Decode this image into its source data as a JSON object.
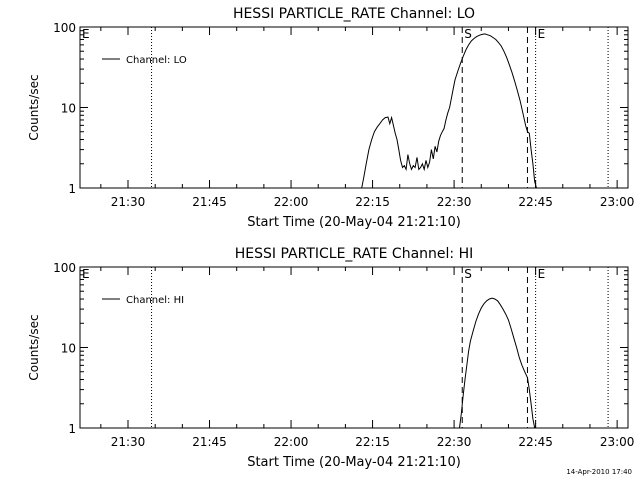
{
  "footer_timestamp": "14-Apr-2010 17:40",
  "chart_data": [
    {
      "type": "line",
      "title": "HESSI PARTICLE_RATE Channel: LO",
      "xlabel": "Start Time (20-May-04 21:21:10)",
      "ylabel": "Counts/sec",
      "y_scale": "log",
      "ylim": [
        1,
        100
      ],
      "xlim": [
        "21:21:10",
        "23:02:00"
      ],
      "x_ticks": [
        "21:30",
        "21:45",
        "22:00",
        "22:15",
        "22:30",
        "22:45",
        "23:00"
      ],
      "y_ticks": [
        "1",
        "10",
        "100"
      ],
      "legend": {
        "placement": "top-left",
        "entries": [
          "Channel: LO"
        ]
      },
      "markers": [
        {
          "label": "E",
          "x": "21:21:10",
          "style": "dotted"
        },
        {
          "label": "",
          "x": "21:34:20",
          "style": "dotted"
        },
        {
          "label": "S",
          "x": "22:31:30",
          "style": "dashed"
        },
        {
          "label": "",
          "x": "22:43:30",
          "style": "dashed"
        },
        {
          "label": "E",
          "x": "22:45:00",
          "style": "dotted"
        },
        {
          "label": "",
          "x": "22:58:20",
          "style": "dotted"
        }
      ],
      "series": [
        {
          "name": "Channel: LO",
          "x": [
            "22:13:00",
            "22:13:20",
            "22:13:50",
            "22:14:20",
            "22:14:50",
            "22:15:20",
            "22:15:50",
            "22:16:20",
            "22:16:50",
            "22:17:20",
            "22:17:50",
            "22:18:10",
            "22:18:30",
            "22:18:50",
            "22:19:10",
            "22:19:30",
            "22:19:50",
            "22:20:10",
            "22:20:30",
            "22:20:50",
            "22:21:10",
            "22:21:30",
            "22:21:50",
            "22:22:10",
            "22:22:30",
            "22:22:50",
            "22:23:10",
            "22:23:30",
            "22:23:50",
            "22:24:10",
            "22:24:30",
            "22:24:50",
            "22:25:10",
            "22:25:30",
            "22:25:50",
            "22:26:10",
            "22:26:30",
            "22:26:50",
            "22:27:10",
            "22:27:30",
            "22:27:50",
            "22:28:10",
            "22:28:30",
            "22:28:50",
            "22:29:10",
            "22:29:30",
            "22:29:50",
            "22:30:10",
            "22:30:40",
            "22:31:10",
            "22:31:40",
            "22:32:10",
            "22:32:40",
            "22:33:10",
            "22:33:40",
            "22:34:10",
            "22:34:40",
            "22:35:10",
            "22:35:40",
            "22:36:10",
            "22:36:40",
            "22:37:10",
            "22:37:40",
            "22:38:10",
            "22:38:40",
            "22:39:10",
            "22:39:40",
            "22:40:10",
            "22:40:40",
            "22:41:10",
            "22:41:40",
            "22:42:10",
            "22:42:40",
            "22:43:10",
            "22:43:30",
            "22:43:50",
            "22:44:10",
            "22:44:30",
            "22:44:50",
            "22:45:10"
          ],
          "values": [
            1,
            1.3,
            2.0,
            3.0,
            4.0,
            5.0,
            5.7,
            6.3,
            7.0,
            7.5,
            7.6,
            6.3,
            7.5,
            6.0,
            4.8,
            4.0,
            3.0,
            2.2,
            1.8,
            1.9,
            1.7,
            2.6,
            2.0,
            1.7,
            1.9,
            1.8,
            2.4,
            1.7,
            1.8,
            2.0,
            1.7,
            2.2,
            1.8,
            2.1,
            3.0,
            2.3,
            3.3,
            2.8,
            3.8,
            4.5,
            5.0,
            5.5,
            7.0,
            8.5,
            10,
            13,
            17,
            22,
            28,
            35,
            43,
            52,
            60,
            67,
            72,
            76,
            79,
            81,
            82,
            80,
            78,
            74,
            70,
            64,
            58,
            50,
            42,
            34,
            27,
            21,
            16,
            12,
            8.5,
            6.0,
            5.0,
            4.8,
            3.0,
            2.0,
            1.2,
            1
          ]
        }
      ]
    },
    {
      "type": "line",
      "title": "HESSI PARTICLE_RATE Channel: HI",
      "xlabel": "Start Time (20-May-04 21:21:10)",
      "ylabel": "Counts/sec",
      "y_scale": "log",
      "ylim": [
        1,
        100
      ],
      "xlim": [
        "21:21:10",
        "23:02:00"
      ],
      "x_ticks": [
        "21:30",
        "21:45",
        "22:00",
        "22:15",
        "22:30",
        "22:45",
        "23:00"
      ],
      "y_ticks": [
        "1",
        "10",
        "100"
      ],
      "legend": {
        "placement": "top-left",
        "entries": [
          "Channel: HI"
        ]
      },
      "markers": [
        {
          "label": "E",
          "x": "21:21:10",
          "style": "dotted"
        },
        {
          "label": "",
          "x": "21:34:20",
          "style": "dotted"
        },
        {
          "label": "S",
          "x": "22:31:30",
          "style": "dashed"
        },
        {
          "label": "",
          "x": "22:43:30",
          "style": "dashed"
        },
        {
          "label": "E",
          "x": "22:45:00",
          "style": "dotted"
        },
        {
          "label": "",
          "x": "22:58:20",
          "style": "dotted"
        }
      ],
      "series": [
        {
          "name": "Channel: HI",
          "x": [
            "22:31:00",
            "22:31:20",
            "22:31:40",
            "22:32:00",
            "22:32:20",
            "22:32:40",
            "22:33:00",
            "22:33:30",
            "22:34:00",
            "22:34:30",
            "22:35:00",
            "22:35:30",
            "22:36:00",
            "22:36:30",
            "22:37:00",
            "22:37:30",
            "22:38:00",
            "22:38:30",
            "22:39:00",
            "22:39:30",
            "22:40:00",
            "22:40:30",
            "22:41:00",
            "22:41:30",
            "22:42:00",
            "22:42:30",
            "22:43:00",
            "22:43:30",
            "22:43:50",
            "22:44:10",
            "22:44:30",
            "22:44:50"
          ],
          "values": [
            1,
            1.5,
            2.5,
            4.0,
            6.0,
            9.0,
            12,
            16,
            21,
            26,
            31,
            35,
            38,
            40,
            41,
            40,
            38,
            34,
            30,
            26,
            22,
            17,
            13,
            10,
            7.5,
            6.0,
            5.0,
            4.2,
            3.0,
            2.0,
            1.3,
            1
          ]
        }
      ]
    }
  ]
}
